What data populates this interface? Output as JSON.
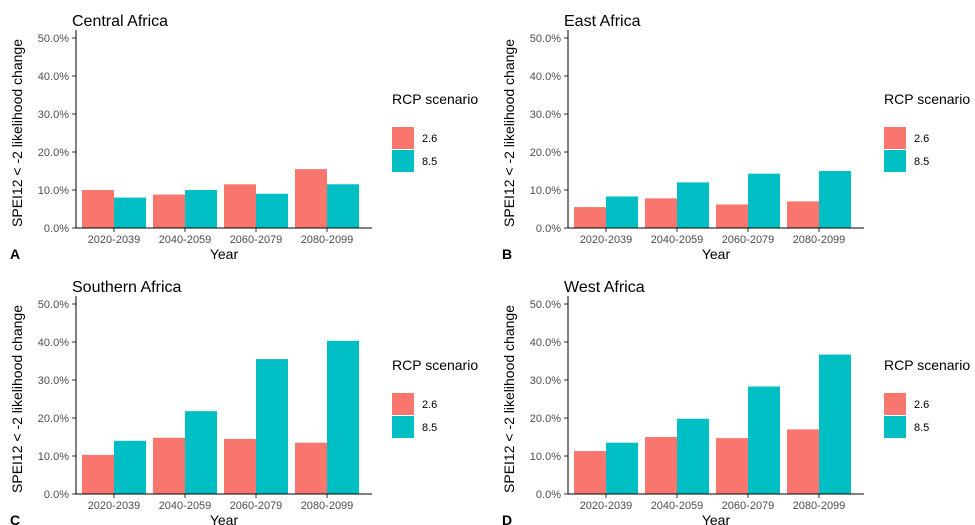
{
  "legend": {
    "title": "RCP scenario",
    "items": [
      {
        "label": "2.6",
        "color": "#F8766D"
      },
      {
        "label": "8.5",
        "color": "#00BFC4"
      }
    ]
  },
  "chart_data": [
    {
      "type": "bar",
      "panel_letter": "A",
      "title": "Central Africa",
      "xlabel": "Year",
      "ylabel": "SPEI12 < -2 likelihood change",
      "ylim": [
        0,
        0.5
      ],
      "yticks": [
        "0.0%",
        "10.0%",
        "20.0%",
        "30.0%",
        "40.0%",
        "50.0%"
      ],
      "categories": [
        "2020-2039",
        "2040-2059",
        "2060-2079",
        "2080-2099"
      ],
      "series": [
        {
          "name": "2.6",
          "values": [
            0.1,
            0.088,
            0.115,
            0.155
          ]
        },
        {
          "name": "8.5",
          "values": [
            0.08,
            0.1,
            0.09,
            0.115
          ]
        }
      ],
      "legend_position": "right",
      "grid": false
    },
    {
      "type": "bar",
      "panel_letter": "B",
      "title": "East Africa",
      "xlabel": "Year",
      "ylabel": "SPEI12 < -2 likelihood change",
      "ylim": [
        0,
        0.5
      ],
      "yticks": [
        "0.0%",
        "10.0%",
        "20.0%",
        "30.0%",
        "40.0%",
        "50.0%"
      ],
      "categories": [
        "2020-2039",
        "2040-2059",
        "2060-2079",
        "2080-2099"
      ],
      "series": [
        {
          "name": "2.6",
          "values": [
            0.055,
            0.078,
            0.062,
            0.07
          ]
        },
        {
          "name": "8.5",
          "values": [
            0.083,
            0.12,
            0.143,
            0.15
          ]
        }
      ],
      "legend_position": "right",
      "grid": false
    },
    {
      "type": "bar",
      "panel_letter": "C",
      "title": "Southern Africa",
      "xlabel": "Year",
      "ylabel": "SPEI12 < -2 likelihood change",
      "ylim": [
        0,
        0.5
      ],
      "yticks": [
        "0.0%",
        "10.0%",
        "20.0%",
        "30.0%",
        "40.0%",
        "50.0%"
      ],
      "categories": [
        "2020-2039",
        "2040-2059",
        "2060-2079",
        "2080-2099"
      ],
      "series": [
        {
          "name": "2.6",
          "values": [
            0.103,
            0.148,
            0.145,
            0.135
          ]
        },
        {
          "name": "8.5",
          "values": [
            0.14,
            0.218,
            0.355,
            0.403
          ]
        }
      ],
      "legend_position": "right",
      "grid": false
    },
    {
      "type": "bar",
      "panel_letter": "D",
      "title": "West Africa",
      "xlabel": "Year",
      "ylabel": "SPEI12 < -2 likelihood change",
      "ylim": [
        0,
        0.5
      ],
      "yticks": [
        "0.0%",
        "10.0%",
        "20.0%",
        "30.0%",
        "40.0%",
        "50.0%"
      ],
      "categories": [
        "2020-2039",
        "2040-2059",
        "2060-2079",
        "2080-2099"
      ],
      "series": [
        {
          "name": "2.6",
          "values": [
            0.113,
            0.15,
            0.147,
            0.17
          ]
        },
        {
          "name": "8.5",
          "values": [
            0.135,
            0.198,
            0.283,
            0.367
          ]
        }
      ],
      "legend_position": "right",
      "grid": false
    }
  ]
}
